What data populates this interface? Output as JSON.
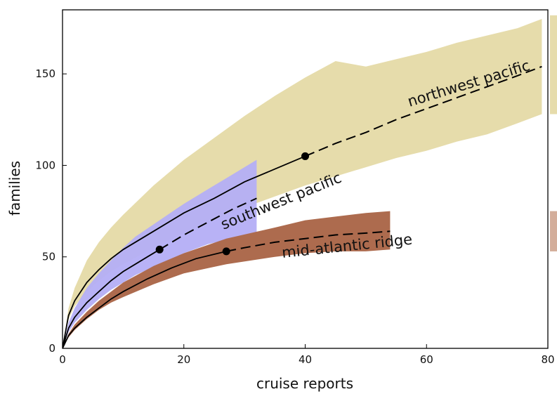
{
  "chart_data": {
    "type": "line",
    "title": "",
    "xlabel": "cruise reports",
    "ylabel": "families",
    "xlim": [
      0,
      80
    ],
    "ylim": [
      0,
      185
    ],
    "xticks": [
      0,
      20,
      40,
      60,
      80
    ],
    "yticks": [
      0,
      50,
      100,
      150
    ],
    "grid": false,
    "legend": "none (labels drawn on curves)",
    "series": [
      {
        "name": "northwest pacific",
        "color": "#e6dcab",
        "band_x": [
          0,
          1,
          2,
          4,
          6,
          8,
          10,
          15,
          20,
          25,
          30,
          35,
          40,
          45,
          50,
          55,
          60,
          65,
          70,
          75,
          79
        ],
        "band_upper": [
          0,
          22,
          33,
          48,
          58,
          66,
          73,
          89,
          103,
          115,
          127,
          138,
          148,
          157,
          154,
          158,
          162,
          167,
          171,
          175,
          180
        ],
        "band_lower": [
          0,
          16,
          23,
          31,
          37,
          42,
          46,
          55,
          63,
          70,
          77,
          83,
          89,
          94,
          99,
          104,
          108,
          113,
          117,
          123,
          128
        ],
        "observed_x": [
          0,
          1,
          2,
          4,
          6,
          8,
          10,
          15,
          20,
          25,
          30,
          35,
          40
        ],
        "observed_y": [
          0,
          18,
          26,
          36,
          43,
          49,
          54,
          64,
          74,
          82,
          91,
          98,
          105
        ],
        "extrapolated_x": [
          40,
          45,
          50,
          55,
          60,
          65,
          70,
          75,
          79
        ],
        "extrapolated_y": [
          105,
          112,
          118,
          125,
          131,
          137,
          143,
          149,
          154
        ],
        "sample_point": [
          40,
          105
        ]
      },
      {
        "name": "southwest pacific",
        "color": "#b4aef6",
        "band_x": [
          0,
          1,
          2,
          4,
          6,
          8,
          10,
          12,
          16,
          20,
          24,
          28,
          32
        ],
        "band_upper": [
          0,
          14,
          22,
          33,
          41,
          48,
          55,
          61,
          70,
          79,
          87,
          95,
          103
        ],
        "band_lower": [
          0,
          9,
          14,
          21,
          27,
          32,
          36,
          40,
          46,
          52,
          57,
          60,
          63
        ],
        "observed_x": [
          0,
          1,
          2,
          4,
          6,
          8,
          10,
          12,
          14,
          16
        ],
        "observed_y": [
          0,
          11,
          17,
          25,
          31,
          37,
          42,
          46,
          50,
          54
        ],
        "extrapolated_x": [
          16,
          20,
          24,
          28,
          32
        ],
        "extrapolated_y": [
          54,
          62,
          69,
          76,
          82
        ],
        "sample_point": [
          16,
          54
        ]
      },
      {
        "name": "mid-atlantic ridge",
        "color": "#ad6b4e",
        "band_x": [
          0,
          1,
          2,
          4,
          6,
          8,
          10,
          15,
          20,
          27,
          35,
          40,
          45,
          50,
          54
        ],
        "band_upper": [
          0,
          8,
          13,
          20,
          26,
          31,
          36,
          45,
          52,
          60,
          66,
          70,
          72,
          74,
          75
        ],
        "band_lower": [
          0,
          6,
          10,
          16,
          21,
          25,
          28,
          35,
          41,
          46,
          50,
          52,
          53,
          53,
          54
        ],
        "observed_x": [
          0,
          1,
          2,
          4,
          6,
          8,
          10,
          14,
          18,
          22,
          27
        ],
        "observed_y": [
          0,
          7,
          11,
          17,
          22,
          27,
          31,
          38,
          44,
          49,
          53
        ],
        "extrapolated_x": [
          27,
          30,
          35,
          40,
          45,
          50,
          54
        ],
        "extrapolated_y": [
          53,
          55,
          58,
          60,
          62,
          63,
          64
        ],
        "sample_point": [
          27,
          53
        ]
      }
    ],
    "right_edge_bands": [
      {
        "series": "northwest pacific",
        "color": "#e6dcab",
        "ylim": [
          128,
          182
        ]
      },
      {
        "series": "mid-atlantic ridge",
        "color": "#d3ad9a",
        "ylim": [
          53,
          75
        ]
      }
    ]
  }
}
